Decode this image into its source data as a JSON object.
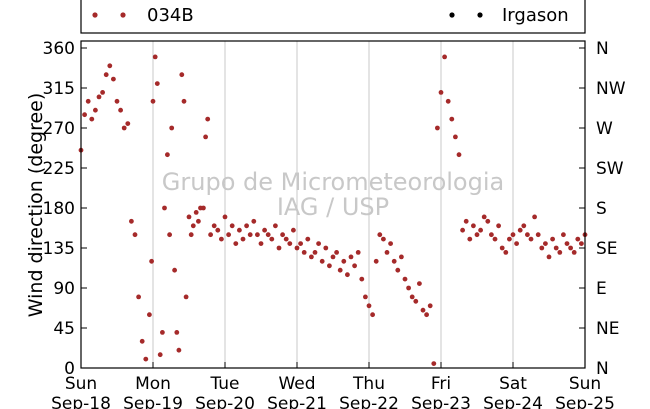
{
  "chart_data": {
    "type": "scatter",
    "title": "",
    "ylabel": "Wind direction (degree)",
    "xlabel": "",
    "ylim": [
      0,
      360
    ],
    "xlim": [
      0,
      7
    ],
    "x_unit": "days from Sun Sep-18",
    "yticks": [
      0,
      45,
      90,
      135,
      180,
      225,
      270,
      315,
      360
    ],
    "right_ticks": [
      {
        "value": 0,
        "label": "N"
      },
      {
        "value": 45,
        "label": "NE"
      },
      {
        "value": 90,
        "label": "E"
      },
      {
        "value": 135,
        "label": "SE"
      },
      {
        "value": 180,
        "label": "S"
      },
      {
        "value": 225,
        "label": "SW"
      },
      {
        "value": 270,
        "label": "W"
      },
      {
        "value": 315,
        "label": "NW"
      },
      {
        "value": 360,
        "label": "N"
      }
    ],
    "xticks": [
      {
        "day": "Sun",
        "date": "Sep-18"
      },
      {
        "day": "Mon",
        "date": "Sep-19"
      },
      {
        "day": "Tue",
        "date": "Sep-20"
      },
      {
        "day": "Wed",
        "date": "Sep-21"
      },
      {
        "day": "Thu",
        "date": "Sep-22"
      },
      {
        "day": "Fri",
        "date": "Sep-23"
      },
      {
        "day": "Sat",
        "date": "Sep-24"
      },
      {
        "day": "Sun",
        "date": "Sep-25"
      }
    ],
    "grid": "vertical",
    "legend_position": "top",
    "series": [
      {
        "name": "034B",
        "color": "#a52a2a",
        "x": [
          0.0,
          0.05,
          0.1,
          0.15,
          0.2,
          0.25,
          0.3,
          0.35,
          0.4,
          0.45,
          0.5,
          0.55,
          0.6,
          0.65,
          0.7,
          0.75,
          0.8,
          0.85,
          0.9,
          0.95,
          0.98,
          1.0,
          1.03,
          1.06,
          1.1,
          1.13,
          1.16,
          1.2,
          1.23,
          1.26,
          1.3,
          1.33,
          1.36,
          1.4,
          1.43,
          1.46,
          1.5,
          1.53,
          1.56,
          1.6,
          1.63,
          1.66,
          1.7,
          1.73,
          1.76,
          1.8,
          1.85,
          1.9,
          1.95,
          2.0,
          2.05,
          2.1,
          2.15,
          2.2,
          2.25,
          2.3,
          2.35,
          2.4,
          2.45,
          2.5,
          2.55,
          2.6,
          2.65,
          2.7,
          2.75,
          2.8,
          2.85,
          2.9,
          2.95,
          3.0,
          3.05,
          3.1,
          3.15,
          3.2,
          3.25,
          3.3,
          3.35,
          3.4,
          3.45,
          3.5,
          3.55,
          3.6,
          3.65,
          3.7,
          3.75,
          3.8,
          3.85,
          3.9,
          3.95,
          4.0,
          4.05,
          4.1,
          4.15,
          4.2,
          4.25,
          4.3,
          4.35,
          4.4,
          4.45,
          4.5,
          4.55,
          4.6,
          4.65,
          4.7,
          4.75,
          4.8,
          4.85,
          4.9,
          4.95,
          5.0,
          5.05,
          5.1,
          5.15,
          5.2,
          5.25,
          5.3,
          5.35,
          5.4,
          5.45,
          5.5,
          5.55,
          5.6,
          5.65,
          5.7,
          5.75,
          5.8,
          5.85,
          5.9,
          5.95,
          6.0,
          6.05,
          6.1,
          6.15,
          6.2,
          6.25,
          6.3,
          6.35,
          6.4,
          6.45,
          6.5,
          6.55,
          6.6,
          6.65,
          6.7,
          6.75,
          6.8,
          6.85,
          6.9,
          6.95,
          7.0
        ],
        "y": [
          245,
          285,
          300,
          280,
          290,
          305,
          310,
          330,
          340,
          325,
          300,
          290,
          270,
          275,
          165,
          150,
          80,
          30,
          10,
          60,
          120,
          300,
          350,
          320,
          15,
          40,
          180,
          240,
          150,
          270,
          110,
          40,
          20,
          330,
          300,
          80,
          170,
          150,
          160,
          175,
          165,
          180,
          180,
          260,
          280,
          150,
          160,
          155,
          145,
          170,
          150,
          160,
          140,
          155,
          145,
          160,
          150,
          165,
          150,
          140,
          155,
          150,
          145,
          160,
          135,
          150,
          145,
          140,
          155,
          135,
          140,
          130,
          145,
          125,
          130,
          140,
          120,
          135,
          115,
          125,
          130,
          110,
          120,
          105,
          125,
          115,
          130,
          100,
          80,
          70,
          60,
          120,
          150,
          145,
          130,
          140,
          120,
          110,
          125,
          100,
          90,
          80,
          75,
          95,
          65,
          60,
          70,
          5,
          270,
          310,
          350,
          300,
          280,
          260,
          240,
          155,
          165,
          145,
          160,
          150,
          155,
          170,
          165,
          150,
          145,
          160,
          135,
          130,
          145,
          150,
          140,
          155,
          160,
          150,
          145,
          170,
          150,
          135,
          140,
          125,
          145,
          135,
          130,
          150,
          140,
          135,
          130,
          145,
          140,
          150
        ]
      },
      {
        "name": "Irgason",
        "color": "#000000",
        "x": [],
        "y": []
      }
    ]
  },
  "watermark": {
    "line1": "Grupo de Micrometeorologia",
    "line2": "IAG / USP"
  }
}
